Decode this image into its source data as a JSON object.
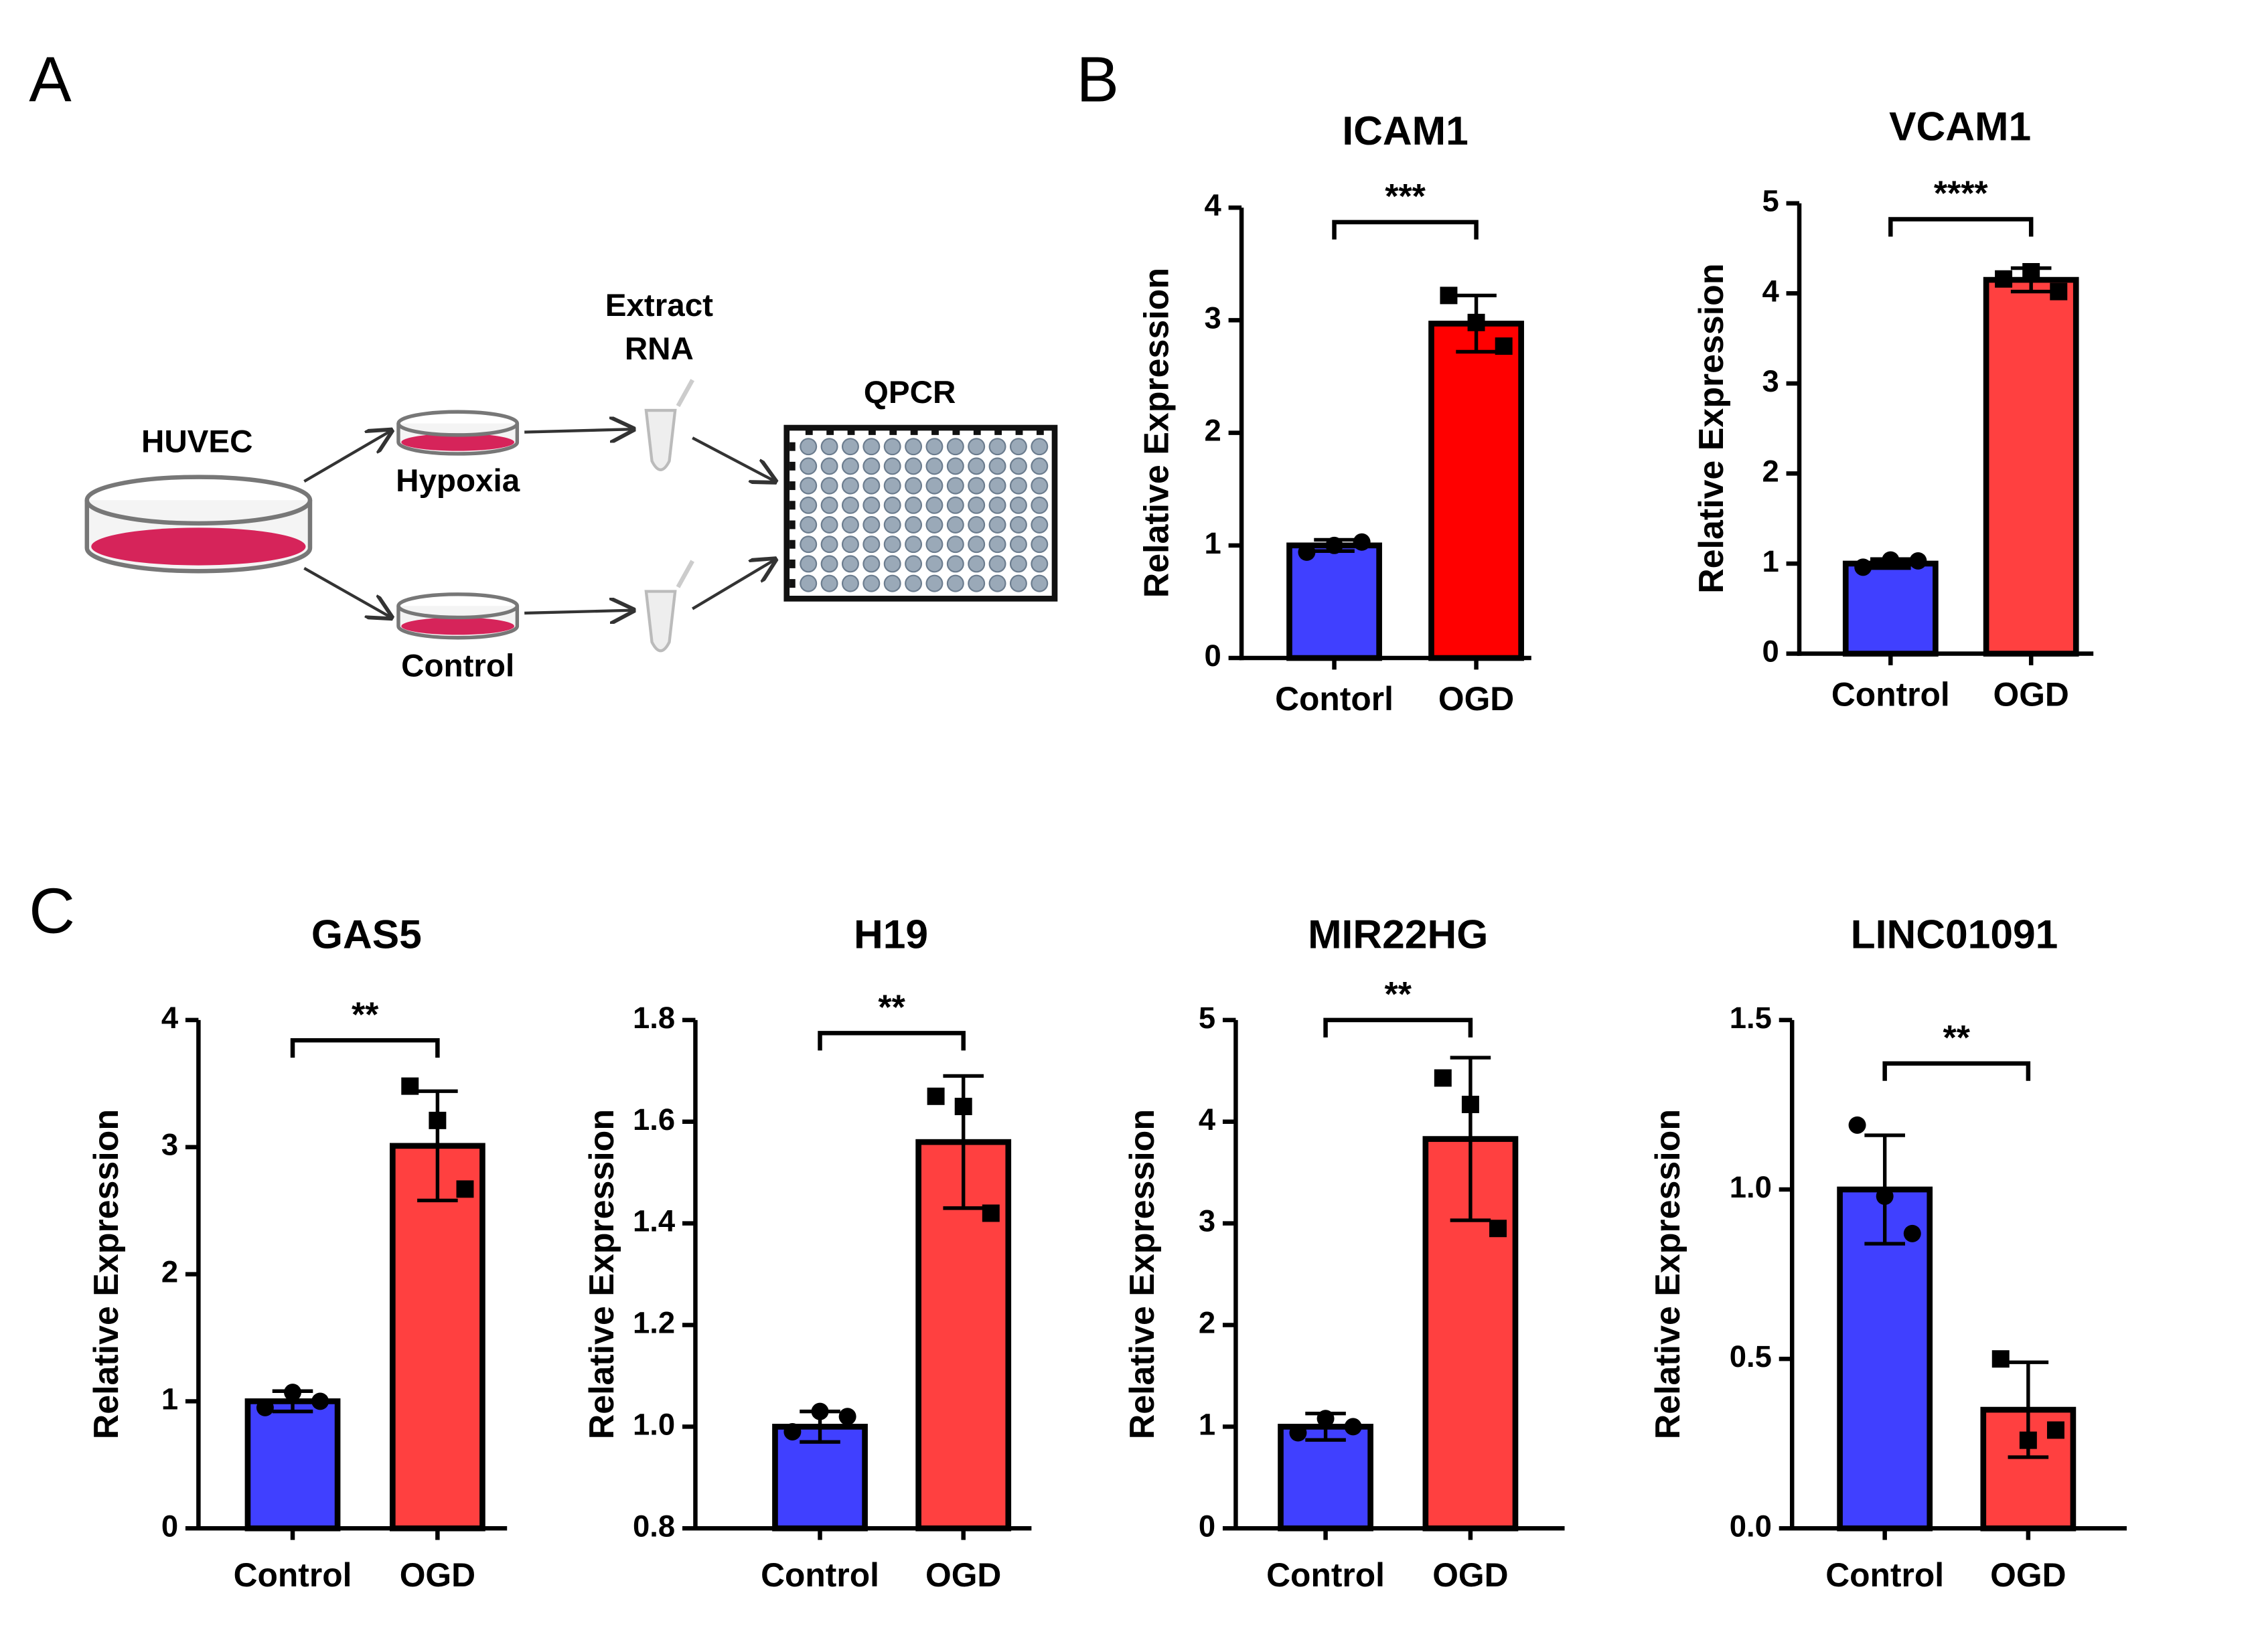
{
  "panel_labels": [
    "A",
    "B",
    "C"
  ],
  "diagram": {
    "huvec": "HUVEC",
    "hypoxia": "Hypoxia",
    "control": "Control",
    "extract_rna": [
      "Extract",
      "RNA"
    ],
    "qpcr": "QPCR"
  },
  "chart_data": [
    {
      "type": "bar",
      "title": "ICAM1",
      "ylabel": "Relative Expression",
      "categories": [
        "Contorl",
        "OGD"
      ],
      "values": [
        1.0,
        2.97
      ],
      "errors": [
        0.05,
        0.25
      ],
      "colors": [
        "#4040ff",
        "#ff0000"
      ],
      "points": [
        [
          0.94,
          1.0,
          1.03
        ],
        [
          3.22,
          2.98,
          2.77
        ]
      ],
      "ylim": [
        0,
        4
      ],
      "yticks": [
        0,
        1,
        2,
        3,
        4
      ],
      "significance": "***"
    },
    {
      "type": "bar",
      "title": "VCAM1",
      "ylabel": "Relative Expression",
      "categories": [
        "Control",
        "OGD"
      ],
      "values": [
        1.0,
        4.15
      ],
      "errors": [
        0.05,
        0.13
      ],
      "colors": [
        "#4040ff",
        "#ff4040"
      ],
      "points": [
        [
          0.96,
          1.04,
          1.03
        ],
        [
          4.16,
          4.24,
          4.02
        ]
      ],
      "ylim": [
        0,
        5
      ],
      "yticks": [
        0,
        1,
        2,
        3,
        4,
        5
      ],
      "significance": "****"
    },
    {
      "type": "bar",
      "title": "GAS5",
      "ylabel": "Relative Expression",
      "categories": [
        "Control",
        "OGD"
      ],
      "values": [
        1.0,
        3.01
      ],
      "errors": [
        0.08,
        0.43
      ],
      "colors": [
        "#4040ff",
        "#ff4040"
      ],
      "points": [
        [
          0.95,
          1.07,
          1.0
        ],
        [
          3.48,
          3.21,
          2.67
        ]
      ],
      "ylim": [
        0,
        4
      ],
      "yticks": [
        0,
        1,
        2,
        3,
        4
      ],
      "significance": "**"
    },
    {
      "type": "bar",
      "title": "H19",
      "ylabel": "Relative Expression",
      "categories": [
        "Control",
        "OGD"
      ],
      "values": [
        1.0,
        1.56
      ],
      "errors": [
        0.03,
        0.13
      ],
      "colors": [
        "#4040ff",
        "#ff4040"
      ],
      "points": [
        [
          0.99,
          1.03,
          1.02
        ],
        [
          1.65,
          1.63,
          1.42
        ]
      ],
      "ylim": [
        0.8,
        1.8
      ],
      "yticks": [
        0.8,
        {
          "value": 1.0,
          "label": "1.0"
        },
        1.2,
        1.4,
        1.6,
        1.8
      ],
      "significance": "**"
    },
    {
      "type": "bar",
      "title": "MIR22HG",
      "ylabel": "Relative Expression",
      "categories": [
        "Control",
        "OGD"
      ],
      "values": [
        1.0,
        3.83
      ],
      "errors": [
        0.13,
        0.8
      ],
      "colors": [
        "#4040ff",
        "#ff4040"
      ],
      "points": [
        [
          0.94,
          1.08,
          1.0
        ],
        [
          4.43,
          4.17,
          2.95
        ]
      ],
      "ylim": [
        0,
        5
      ],
      "yticks": [
        0,
        1,
        2,
        3,
        4,
        5
      ],
      "significance": "**"
    },
    {
      "type": "bar",
      "title": "LINC01091",
      "ylabel": "Relative Expression",
      "categories": [
        "Control",
        "OGD"
      ],
      "values": [
        1.0,
        0.35
      ],
      "errors": [
        0.16,
        0.14
      ],
      "colors": [
        "#4040ff",
        "#ff4040"
      ],
      "points": [
        [
          1.19,
          0.98,
          0.87
        ],
        [
          0.5,
          0.26,
          0.29
        ]
      ],
      "ylim": [
        0,
        1.5
      ],
      "yticks": [
        {
          "value": 0,
          "label": "0.0"
        },
        0.5,
        {
          "value": 1.0,
          "label": "1.0"
        },
        1.5
      ],
      "significance": "**"
    }
  ]
}
